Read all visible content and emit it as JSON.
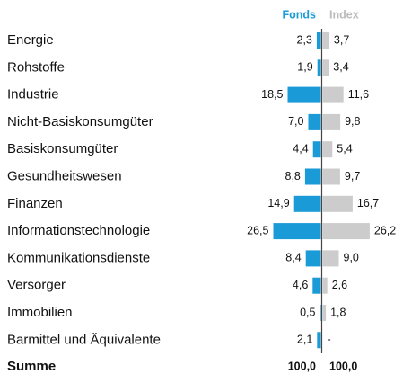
{
  "chart_data": {
    "type": "diverging-bar",
    "categories": [
      "Energie",
      "Rohstoffe",
      "Industrie",
      "Nicht-Basiskonsumgüter",
      "Basiskonsumgüter",
      "Gesundheitswesen",
      "Finanzen",
      "Informationstechnologie",
      "Kommunikationsdienste",
      "Versorger",
      "Immobilien",
      "Barmittel und Äquivalente"
    ],
    "series": [
      {
        "name": "Fonds",
        "color": "#1a9ad6",
        "values": [
          2.3,
          1.9,
          18.5,
          7.0,
          4.4,
          8.8,
          14.9,
          26.5,
          8.4,
          4.6,
          0.5,
          2.1
        ],
        "value_labels": [
          "2,3",
          "1,9",
          "18,5",
          "7,0",
          "4,4",
          "8,8",
          "14,9",
          "26,5",
          "8,4",
          "4,6",
          "0,5",
          "2,1"
        ]
      },
      {
        "name": "Index",
        "color": "#cccccc",
        "values": [
          3.7,
          3.4,
          11.6,
          9.8,
          5.4,
          9.7,
          16.7,
          26.2,
          9.0,
          2.6,
          1.8,
          null
        ],
        "value_labels": [
          "3,7",
          "3,4",
          "11,6",
          "9,8",
          "5,4",
          "9,7",
          "16,7",
          "26,2",
          "9,0",
          "2,6",
          "1,8",
          "-"
        ]
      }
    ],
    "total": {
      "label": "Summe",
      "values": [
        100.0,
        100.0
      ],
      "value_labels": [
        "100,0",
        "100,0"
      ]
    }
  }
}
